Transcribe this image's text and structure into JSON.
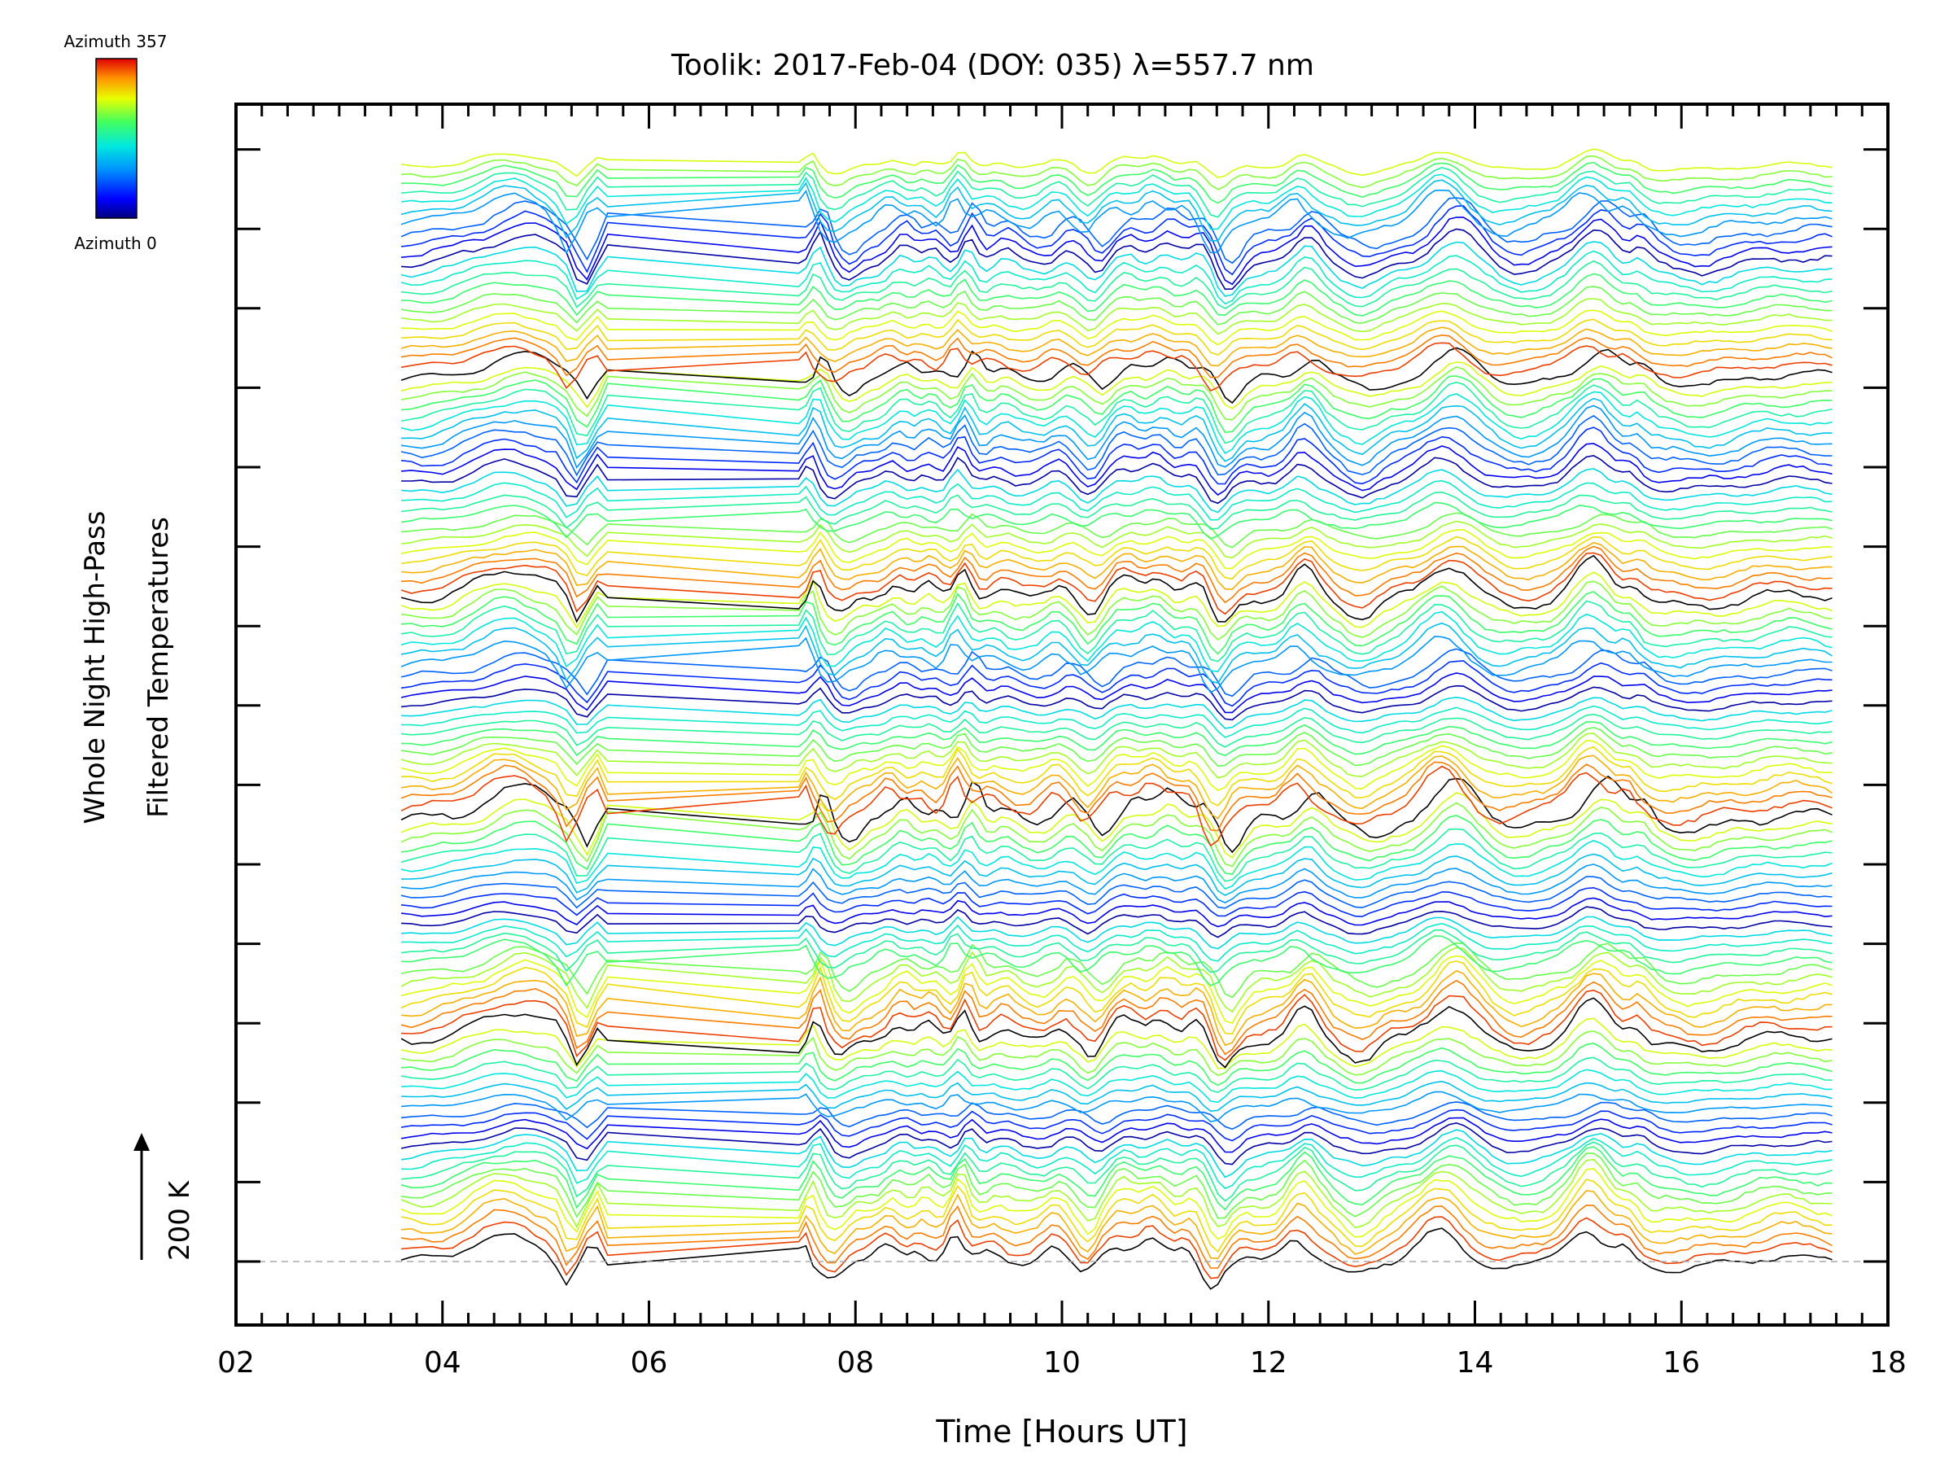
{
  "chart_data": {
    "type": "line",
    "title": "Toolik: 2017-Feb-04 (DOY: 035) λ=557.7 nm",
    "xlabel": "Time [Hours UT]",
    "ylabel_line1": "Whole Night High-Pass",
    "ylabel_line2": "Filtered Temperatures",
    "xlim": [
      2,
      18
    ],
    "x_ticks": [
      "02",
      "04",
      "06",
      "08",
      "10",
      "12",
      "14",
      "16",
      "18"
    ],
    "x_tick_values": [
      2,
      4,
      6,
      8,
      10,
      12,
      14,
      16,
      18
    ],
    "scale_bar_label": "200 K",
    "colorbar_top_label": "Azimuth 357",
    "colorbar_bottom_label": "Azimuth 0",
    "azimuth_range": [
      0,
      357
    ],
    "time_range_hours": [
      3.6,
      17.5
    ],
    "data_gap_hours": [
      5.6,
      7.5
    ],
    "n_stacked_traces": 115,
    "stack_groups": 5,
    "colors": {
      "background": "#ffffff",
      "axes": "#000000",
      "zero_line": "#aaaaaa",
      "colormap": [
        "#000080",
        "#0000ff",
        "#0080ff",
        "#00d0ff",
        "#00ffa0",
        "#80ff40",
        "#e0ff00",
        "#ffc000",
        "#ff6000",
        "#e00000"
      ]
    }
  }
}
